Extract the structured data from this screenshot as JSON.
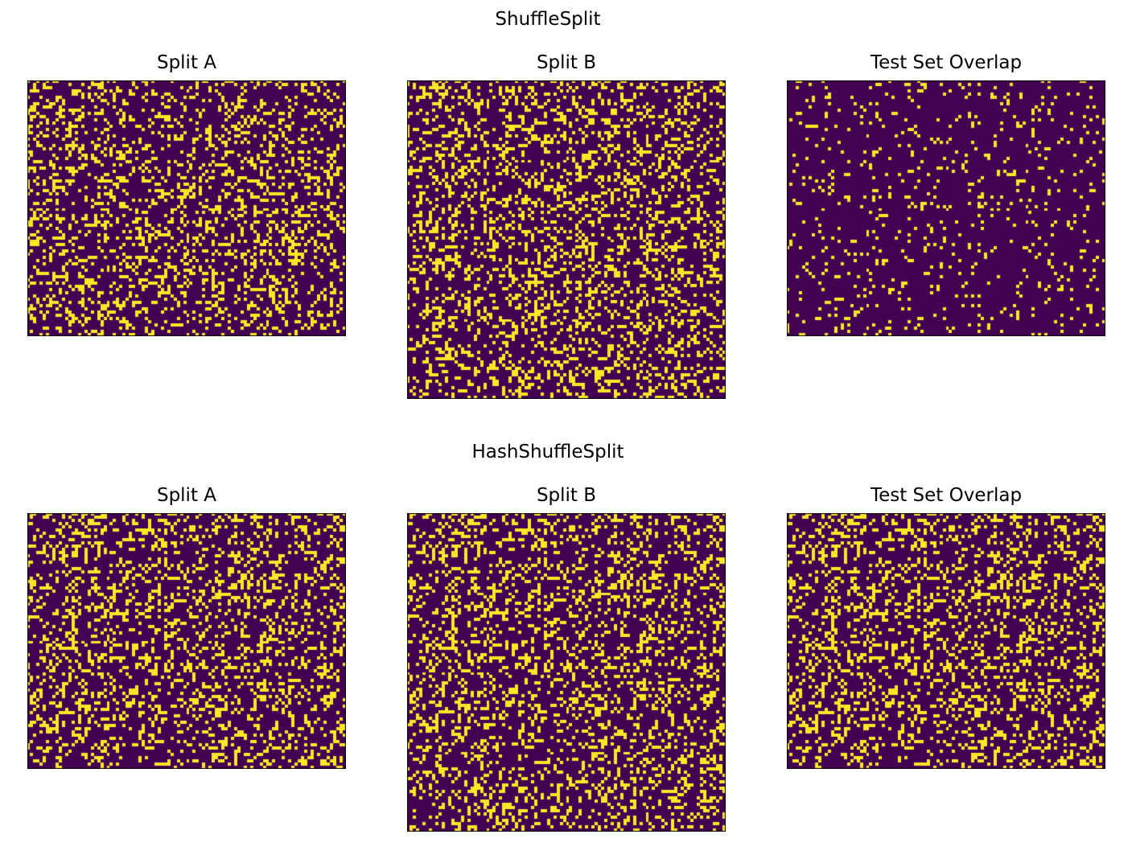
{
  "chart_data": [
    {
      "type": "heatmap",
      "suptitle": "ShuffleSplit",
      "panels": [
        {
          "title": "Split A",
          "rows": 80,
          "cols": 100,
          "fraction_on": 0.25,
          "seed": 11
        },
        {
          "title": "Split B",
          "rows": 100,
          "cols": 100,
          "fraction_on": 0.25,
          "seed": 23
        },
        {
          "title": "Test Set Overlap",
          "rows": 80,
          "cols": 100,
          "fraction_on": 0.08,
          "seed": 37
        }
      ]
    },
    {
      "type": "heatmap",
      "suptitle": "HashShuffleSplit",
      "panels": [
        {
          "title": "Split A",
          "rows": 80,
          "cols": 100,
          "fraction_on": 0.25,
          "seed": 53
        },
        {
          "title": "Split B",
          "rows": 100,
          "cols": 100,
          "fraction_on": 0.25,
          "seed": 53
        },
        {
          "title": "Test Set Overlap",
          "rows": 80,
          "cols": 100,
          "fraction_on": 0.25,
          "seed": 53
        }
      ]
    }
  ],
  "colors": {
    "off": "#440154",
    "on": "#fde725",
    "frame": "#000000"
  }
}
